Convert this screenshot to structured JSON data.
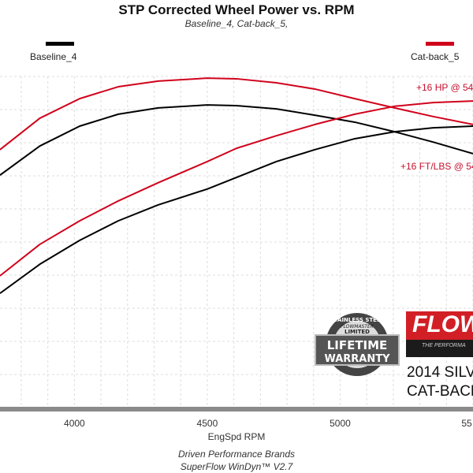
{
  "chart_data": {
    "type": "line",
    "title": "STP Corrected Wheel Power vs. RPM",
    "subtitle": "Baseline_4, Cat-back_5,",
    "xlabel": "EngSpd  RPM",
    "ylabel": "",
    "xlim": [
      3720,
      5500
    ],
    "ylim": [
      0,
      100
    ],
    "x_ticks": [
      "4000",
      "4500",
      "5000",
      "55"
    ],
    "grid": true,
    "legend": [
      {
        "name": "Baseline_4",
        "color": "#000000",
        "position": "top-left"
      },
      {
        "name": "Cat-back_5",
        "color": "#d0021b",
        "position": "top-right"
      }
    ],
    "x": [
      3720,
      3870,
      4020,
      4165,
      4315,
      4500,
      4610,
      4760,
      4905,
      5055,
      5205,
      5350,
      5500
    ],
    "series": [
      {
        "name": "Cat-back_5",
        "color": "#d0021b",
        "values": [
          77.9,
          87.4,
          93.3,
          96.9,
          98.6,
          99.5,
          99.3,
          98.1,
          96.2,
          93.3,
          90.5,
          87.9,
          85.5
        ]
      },
      {
        "name": "Baseline_4",
        "color": "#000000",
        "values": [
          70.2,
          79.0,
          85.0,
          88.6,
          90.5,
          91.4,
          91.2,
          90.2,
          88.3,
          86.2,
          83.3,
          80.2,
          76.7
        ]
      },
      {
        "name": "Cat-back_5",
        "color": "#d0021b",
        "values": [
          39.8,
          49.3,
          56.4,
          62.4,
          67.9,
          74.3,
          78.3,
          82.1,
          85.5,
          88.6,
          91.0,
          92.1,
          92.6
        ]
      },
      {
        "name": "Baseline_4",
        "color": "#000000",
        "values": [
          34.5,
          43.3,
          50.5,
          56.4,
          61.2,
          66.0,
          69.5,
          74.3,
          77.9,
          81.2,
          83.3,
          84.5,
          85.0
        ]
      }
    ],
    "annotations": [
      "+16 HP @ 54",
      "+16 FT/LBS @ 54"
    ]
  },
  "footer": {
    "line1": "Driven Performance Brands",
    "line2": "SuperFlow WinDyn™ V2.7"
  },
  "badge": {
    "top": "STAINLESS STEEL",
    "brand": "FLOWMASTER",
    "limited": "LIMITED",
    "line1": "LIFETIME",
    "line2": "WARRANTY"
  },
  "brand": {
    "logo": "FLOW",
    "tagline": "THE PERFORMA"
  },
  "car": {
    "line1": "2014 SILV",
    "line2": "CAT-BACK"
  }
}
